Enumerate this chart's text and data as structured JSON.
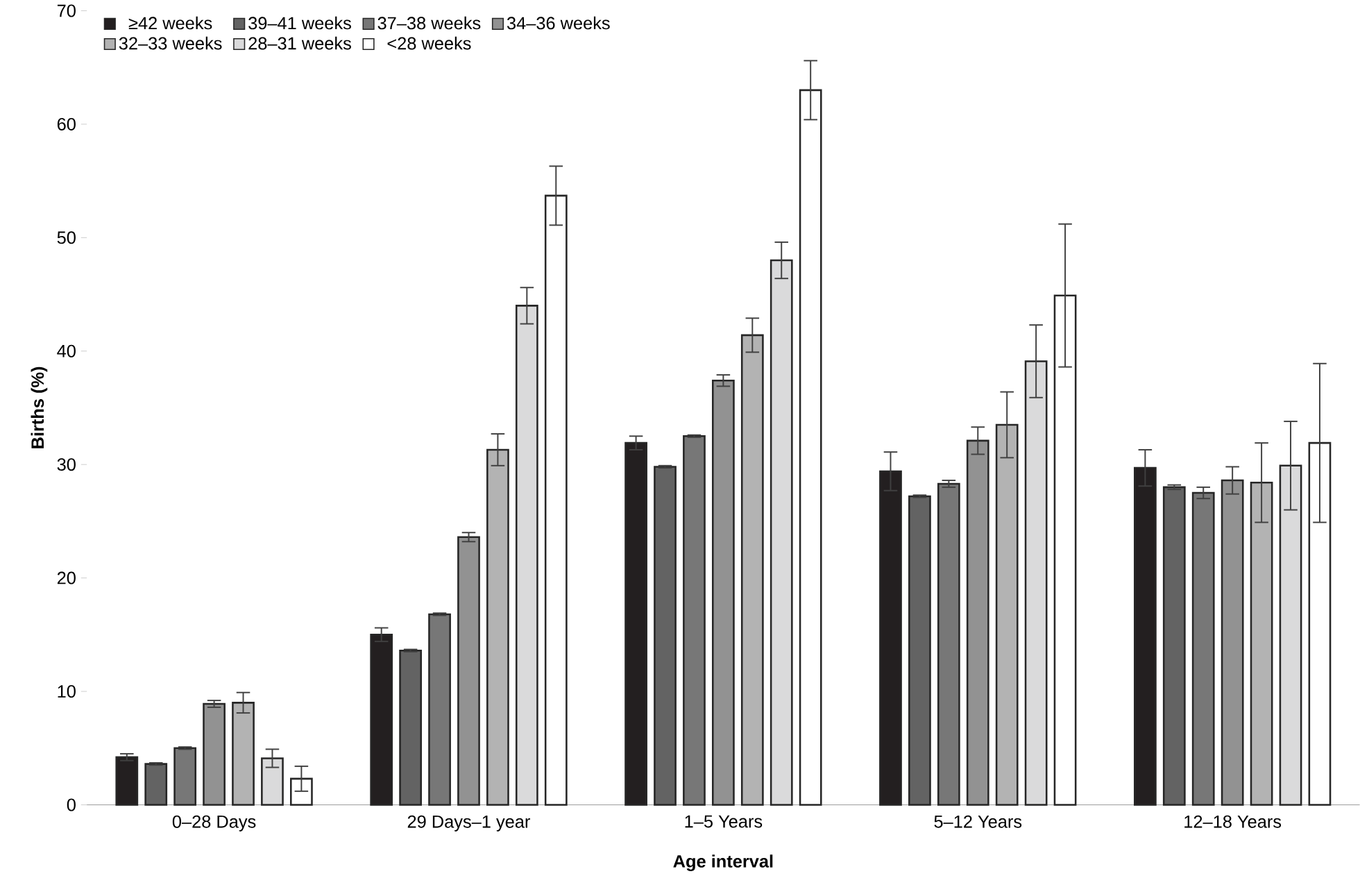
{
  "chart_data": {
    "type": "bar",
    "xlabel": "Age interval",
    "ylabel": "Births (%)",
    "categories": [
      "0–28 Days",
      "29 Days–1 year",
      "1–5 Years",
      "5–12 Years",
      "12–18 Years"
    ],
    "ylim": [
      0,
      70
    ],
    "yticks": [
      0,
      10,
      20,
      30,
      40,
      50,
      60,
      70
    ],
    "grid": false,
    "legend": "top left",
    "series": [
      {
        "name": "≥42 weeks",
        "color": "#231f20",
        "values": [
          4.2,
          15.0,
          31.9,
          29.4,
          29.7
        ],
        "errors": [
          0.3,
          0.6,
          0.6,
          1.7,
          1.6
        ]
      },
      {
        "name": "39–41 weeks",
        "color": "#636363",
        "values": [
          3.6,
          13.6,
          29.8,
          27.2,
          28.0
        ],
        "errors": [
          0.1,
          0.1,
          0.1,
          0.1,
          0.2
        ]
      },
      {
        "name": "37–38 weeks",
        "color": "#777777",
        "values": [
          5.0,
          16.8,
          32.5,
          28.3,
          27.5
        ],
        "errors": [
          0.1,
          0.1,
          0.1,
          0.3,
          0.5
        ]
      },
      {
        "name": "34–36 weeks",
        "color": "#929292",
        "values": [
          8.9,
          23.6,
          37.4,
          32.1,
          28.6
        ],
        "errors": [
          0.3,
          0.4,
          0.5,
          1.2,
          1.2
        ]
      },
      {
        "name": "32–33 weeks",
        "color": "#b3b3b3",
        "values": [
          9.0,
          31.3,
          41.4,
          33.5,
          28.4
        ],
        "errors": [
          0.9,
          1.4,
          1.5,
          2.9,
          3.5
        ]
      },
      {
        "name": "28–31 weeks",
        "color": "#dadadb",
        "values": [
          4.1,
          44.0,
          48.0,
          39.1,
          29.9
        ],
        "errors": [
          0.8,
          1.6,
          1.6,
          3.2,
          3.9
        ]
      },
      {
        "name": "<28 weeks",
        "color": "#ffffff",
        "values": [
          2.3,
          53.7,
          63.0,
          44.9,
          31.9
        ],
        "errors": [
          1.1,
          2.6,
          2.6,
          6.3,
          7.0
        ]
      }
    ]
  }
}
